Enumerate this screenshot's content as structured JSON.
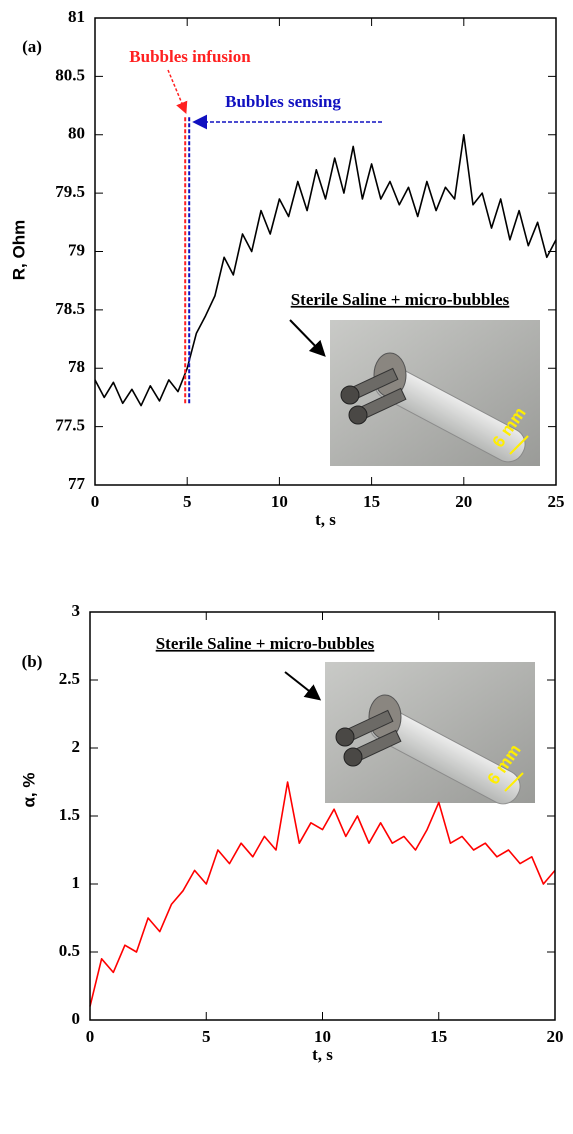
{
  "chart_data": [
    {
      "type": "line",
      "panel_label": "(a)",
      "x_label": "t, s",
      "y_label": "R, Ohm",
      "x": [
        0,
        0.5,
        1,
        1.5,
        2,
        2.5,
        3,
        3.5,
        4,
        4.5,
        5,
        5.5,
        6,
        6.5,
        7,
        7.5,
        8,
        8.5,
        9,
        9.5,
        10,
        10.5,
        11,
        11.5,
        12,
        12.5,
        13,
        13.5,
        14,
        14.5,
        15,
        15.5,
        16,
        16.5,
        17,
        17.5,
        18,
        18.5,
        19,
        19.5,
        20,
        20.5,
        21,
        21.5,
        22,
        22.5,
        23,
        23.5,
        24,
        24.5,
        25
      ],
      "series": [
        {
          "color": "#000000",
          "values": [
            77.9,
            77.75,
            77.88,
            77.7,
            77.82,
            77.68,
            77.85,
            77.72,
            77.9,
            77.8,
            78.0,
            78.3,
            78.45,
            78.62,
            78.95,
            78.8,
            79.15,
            79.0,
            79.35,
            79.15,
            79.45,
            79.3,
            79.6,
            79.35,
            79.7,
            79.45,
            79.8,
            79.5,
            79.9,
            79.45,
            79.75,
            79.45,
            79.6,
            79.4,
            79.55,
            79.3,
            79.6,
            79.35,
            79.55,
            79.45,
            80.0,
            79.4,
            79.5,
            79.2,
            79.45,
            79.1,
            79.35,
            79.05,
            79.25,
            78.95,
            79.1
          ]
        }
      ],
      "xlim": [
        0,
        25
      ],
      "xticks": [
        0,
        5,
        10,
        15,
        20,
        25
      ],
      "ylim": [
        77,
        81
      ],
      "yticks": [
        77,
        77.5,
        78,
        78.5,
        79,
        79.5,
        80,
        80.5,
        81
      ],
      "annotations": [
        {
          "text": "Bubbles infusion",
          "color": "#ff2020",
          "x": 5,
          "y": [
            77.7,
            80.15
          ]
        },
        {
          "text": "Bubbles sensing",
          "color": "#1010c0",
          "x": 5,
          "y": [
            77.7,
            80.15
          ]
        }
      ],
      "inset": {
        "caption": "Sterile Saline + micro-bubbles",
        "scale_label": "6 mm"
      }
    },
    {
      "type": "line",
      "panel_label": "(b)",
      "x_label": "t, s",
      "y_label": "α, %",
      "x": [
        0,
        0.5,
        1,
        1.5,
        2,
        2.5,
        3,
        3.5,
        4,
        4.5,
        5,
        5.5,
        6,
        6.5,
        7,
        7.5,
        8,
        8.5,
        9,
        9.5,
        10,
        10.5,
        11,
        11.5,
        12,
        12.5,
        13,
        13.5,
        14,
        14.5,
        15,
        15.5,
        16,
        16.5,
        17,
        17.5,
        18,
        18.5,
        19,
        19.5,
        20
      ],
      "series": [
        {
          "color": "#ff0000",
          "values": [
            0.1,
            0.45,
            0.35,
            0.55,
            0.5,
            0.75,
            0.65,
            0.85,
            0.95,
            1.1,
            1.0,
            1.25,
            1.15,
            1.3,
            1.2,
            1.35,
            1.25,
            1.75,
            1.3,
            1.45,
            1.4,
            1.55,
            1.35,
            1.5,
            1.3,
            1.45,
            1.3,
            1.35,
            1.25,
            1.4,
            1.6,
            1.3,
            1.35,
            1.25,
            1.3,
            1.2,
            1.25,
            1.15,
            1.2,
            1.0,
            1.1
          ]
        }
      ],
      "xlim": [
        0,
        20
      ],
      "xticks": [
        0,
        5,
        10,
        15,
        20
      ],
      "ylim": [
        0,
        3
      ],
      "yticks": [
        0,
        0.5,
        1,
        1.5,
        2,
        2.5,
        3
      ],
      "inset": {
        "caption": "Sterile Saline + micro-bubbles",
        "scale_label": "6 mm"
      }
    }
  ]
}
